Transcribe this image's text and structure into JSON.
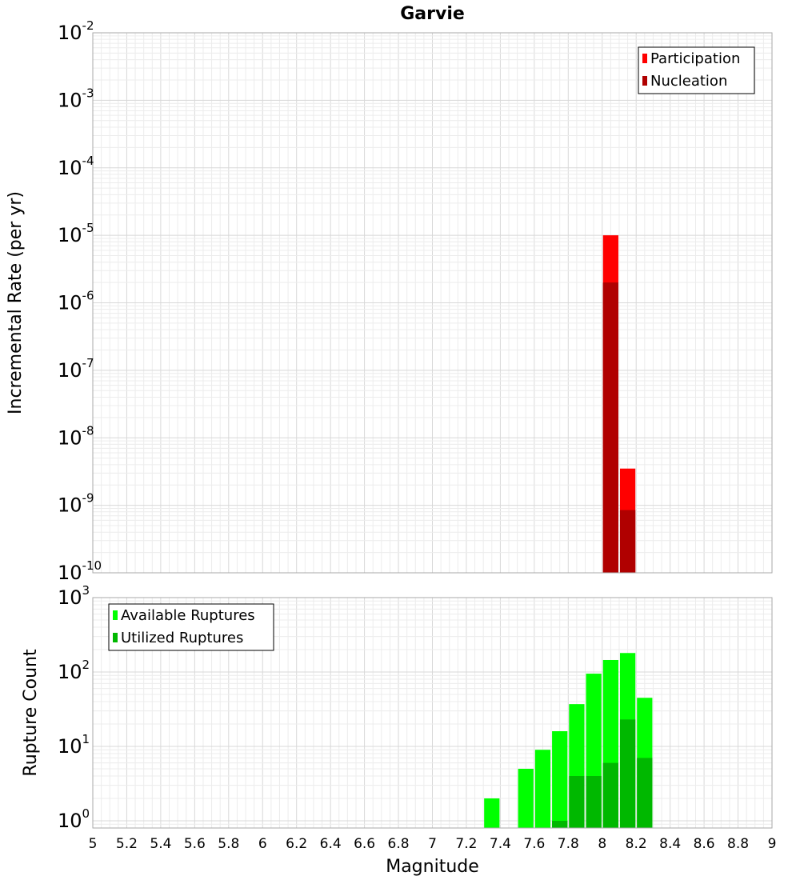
{
  "chart_data": [
    {
      "type": "bar",
      "title": "Garvie",
      "xlabel": "",
      "ylabel": "Incremental Rate (per yr)",
      "yscale": "log",
      "xlim": [
        5,
        9
      ],
      "ylim": [
        1e-10,
        0.01
      ],
      "grid": true,
      "legend_position": "top-right",
      "bin_width": 0.1,
      "series": [
        {
          "name": "Participation",
          "color": "#ff0000",
          "x": [
            8.05,
            8.15
          ],
          "values": [
            1e-05,
            3.5e-09
          ]
        },
        {
          "name": "Nucleation",
          "color": "#b00000",
          "x": [
            8.05,
            8.15
          ],
          "values": [
            2e-06,
            8.5e-10
          ]
        }
      ],
      "y_tick_labels": [
        {
          "base": "10",
          "exp": "-10"
        },
        {
          "base": "10",
          "exp": "-9"
        },
        {
          "base": "10",
          "exp": "-8"
        },
        {
          "base": "10",
          "exp": "-7"
        },
        {
          "base": "10",
          "exp": "-6"
        },
        {
          "base": "10",
          "exp": "-5"
        },
        {
          "base": "10",
          "exp": "-4"
        },
        {
          "base": "10",
          "exp": "-3"
        },
        {
          "base": "10",
          "exp": "-2"
        }
      ]
    },
    {
      "type": "bar",
      "title": "",
      "xlabel": "Magnitude",
      "ylabel": "Rupture Count",
      "yscale": "log",
      "xlim": [
        5,
        9
      ],
      "ylim": [
        0.8,
        1000
      ],
      "grid": true,
      "legend_position": "top-left",
      "bin_width": 0.1,
      "series": [
        {
          "name": "Available Ruptures",
          "color": "#00ff00",
          "x": [
            7.35,
            7.55,
            7.65,
            7.75,
            7.85,
            7.95,
            8.05,
            8.15,
            8.25
          ],
          "values": [
            2,
            5,
            9,
            16,
            37,
            95,
            145,
            180,
            45
          ]
        },
        {
          "name": "Utilized Ruptures",
          "color": "#00b800",
          "x": [
            7.75,
            7.85,
            7.95,
            8.05,
            8.15,
            8.25
          ],
          "values": [
            1,
            4,
            4,
            6,
            23,
            7
          ]
        }
      ],
      "y_tick_labels": [
        {
          "base": "10",
          "exp": "0"
        },
        {
          "base": "10",
          "exp": "1"
        },
        {
          "base": "10",
          "exp": "2"
        },
        {
          "base": "10",
          "exp": "3"
        }
      ],
      "x_tick_labels": [
        "5",
        "5.2",
        "5.4",
        "5.6",
        "5.8",
        "6",
        "6.2",
        "6.4",
        "6.6",
        "6.8",
        "7",
        "7.2",
        "7.4",
        "7.6",
        "7.8",
        "8",
        "8.2",
        "8.4",
        "8.6",
        "8.8",
        "9"
      ]
    }
  ]
}
